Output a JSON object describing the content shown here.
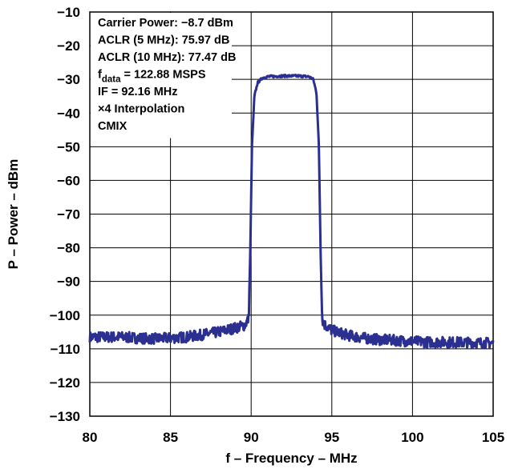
{
  "chart_data": {
    "type": "line",
    "title": "",
    "xlabel": "f – Frequency – MHz",
    "ylabel": "P – Power – dBm",
    "xlim": [
      80,
      105
    ],
    "ylim": [
      -130,
      -10
    ],
    "grid": true,
    "x_ticks": [
      80,
      85,
      90,
      95,
      100,
      105
    ],
    "y_ticks": [
      -10,
      -20,
      -30,
      -40,
      -50,
      -60,
      -70,
      -80,
      -90,
      -100,
      -110,
      -120,
      -130
    ],
    "x_tick_labels": [
      "80",
      "85",
      "90",
      "95",
      "100",
      "105"
    ],
    "y_tick_labels": [
      "−10",
      "−20",
      "−30",
      "−40",
      "−50",
      "−60",
      "−70",
      "−80",
      "−90",
      "−100",
      "−110",
      "−120",
      "−130"
    ],
    "annotations": [
      {
        "text": "Carrier Power: −8.7 dBm"
      },
      {
        "text": "ACLR (5 MHz): 75.97 dB"
      },
      {
        "text": "ACLR (10 MHz): 77.47 dB"
      },
      {
        "main": "f",
        "sub": "data",
        "rest": " = 122.88 MSPS"
      },
      {
        "text": "IF = 92.16 MHz"
      },
      {
        "text": "×4 Interpolation"
      },
      {
        "text": "CMIX"
      }
    ],
    "series": [
      {
        "color": "#2b2f8f",
        "x": [
          80,
          81,
          82,
          83,
          84,
          85,
          86,
          87,
          88,
          89,
          89.6,
          89.85,
          89.95,
          90.05,
          90.2,
          90.4,
          90.7,
          91,
          92,
          93,
          93.6,
          93.85,
          94.05,
          94.2,
          94.3,
          94.4,
          94.5,
          94.6,
          95,
          96,
          97,
          98,
          99,
          100,
          101,
          102,
          103,
          104,
          105
        ],
        "y": [
          -106.5,
          -106.5,
          -106.5,
          -106.8,
          -107,
          -106.8,
          -106.5,
          -105.8,
          -105,
          -103.8,
          -103,
          -101,
          -80,
          -50,
          -35,
          -31,
          -29.6,
          -29.2,
          -29,
          -29,
          -29.2,
          -30,
          -34,
          -50,
          -80,
          -101,
          -102.5,
          -103,
          -104.5,
          -106,
          -106.8,
          -107.3,
          -107.5,
          -107.8,
          -108,
          -108,
          -108.1,
          -108.2,
          -108.3
        ]
      }
    ]
  }
}
